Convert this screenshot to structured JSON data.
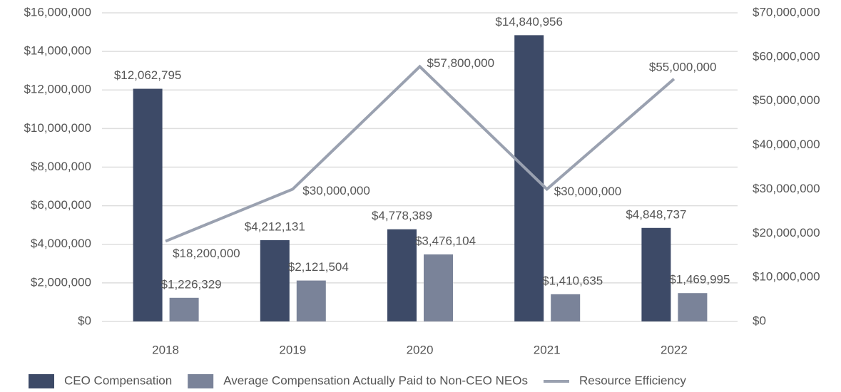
{
  "chart_data": {
    "type": "bar_line",
    "categories": [
      "2018",
      "2019",
      "2020",
      "2021",
      "2022"
    ],
    "series": [
      {
        "name": "CEO Compensation",
        "type": "bar",
        "color": "#3d4a67",
        "values": [
          12062795,
          4212131,
          4778389,
          14840956,
          4848737
        ],
        "value_labels": [
          "$12,062,795",
          "$4,212,131",
          "$4,778,389",
          "$14,840,956",
          "$4,848,737"
        ]
      },
      {
        "name": "Average Compensation Actually Paid to Non-CEO NEOs",
        "type": "bar",
        "color": "#7a8399",
        "values": [
          1226329,
          2121504,
          3476104,
          1410635,
          1469995
        ],
        "value_labels": [
          "$1,226,329",
          "$2,121,504",
          "$3,476,104",
          "$1,410,635",
          "$1,469,995"
        ]
      },
      {
        "name": "Resource Efficiency",
        "type": "line",
        "axis": "y2",
        "color": "#9aa1b0",
        "values": [
          18200000,
          30000000,
          57800000,
          30000000,
          55000000
        ],
        "value_labels": [
          "$18,200,000",
          "$30,000,000",
          "$57,800,000",
          "$30,000,000",
          "$55,000,000"
        ]
      }
    ],
    "ylim": [
      0,
      16000000
    ],
    "yticks": [
      {
        "value": 0,
        "label": "$0"
      },
      {
        "value": 2000000,
        "label": "$2,000,000"
      },
      {
        "value": 4000000,
        "label": "$4,000,000"
      },
      {
        "value": 6000000,
        "label": "$6,000,000"
      },
      {
        "value": 8000000,
        "label": "$8,000,000"
      },
      {
        "value": 10000000,
        "label": "$10,000,000"
      },
      {
        "value": 12000000,
        "label": "$12,000,000"
      },
      {
        "value": 14000000,
        "label": "$14,000,000"
      },
      {
        "value": 16000000,
        "label": "$16,000,000"
      }
    ],
    "y2lim": [
      0,
      70000000
    ],
    "y2ticks": [
      {
        "value": 0,
        "label": "$0"
      },
      {
        "value": 10000000,
        "label": "$10,000,000"
      },
      {
        "value": 20000000,
        "label": "$20,000,000"
      },
      {
        "value": 30000000,
        "label": "$30,000,000"
      },
      {
        "value": 40000000,
        "label": "$40,000,000"
      },
      {
        "value": 50000000,
        "label": "$50,000,000"
      },
      {
        "value": 60000000,
        "label": "$60,000,000"
      },
      {
        "value": 70000000,
        "label": "$70,000,000"
      }
    ],
    "grid": true,
    "legend": "bottom"
  }
}
